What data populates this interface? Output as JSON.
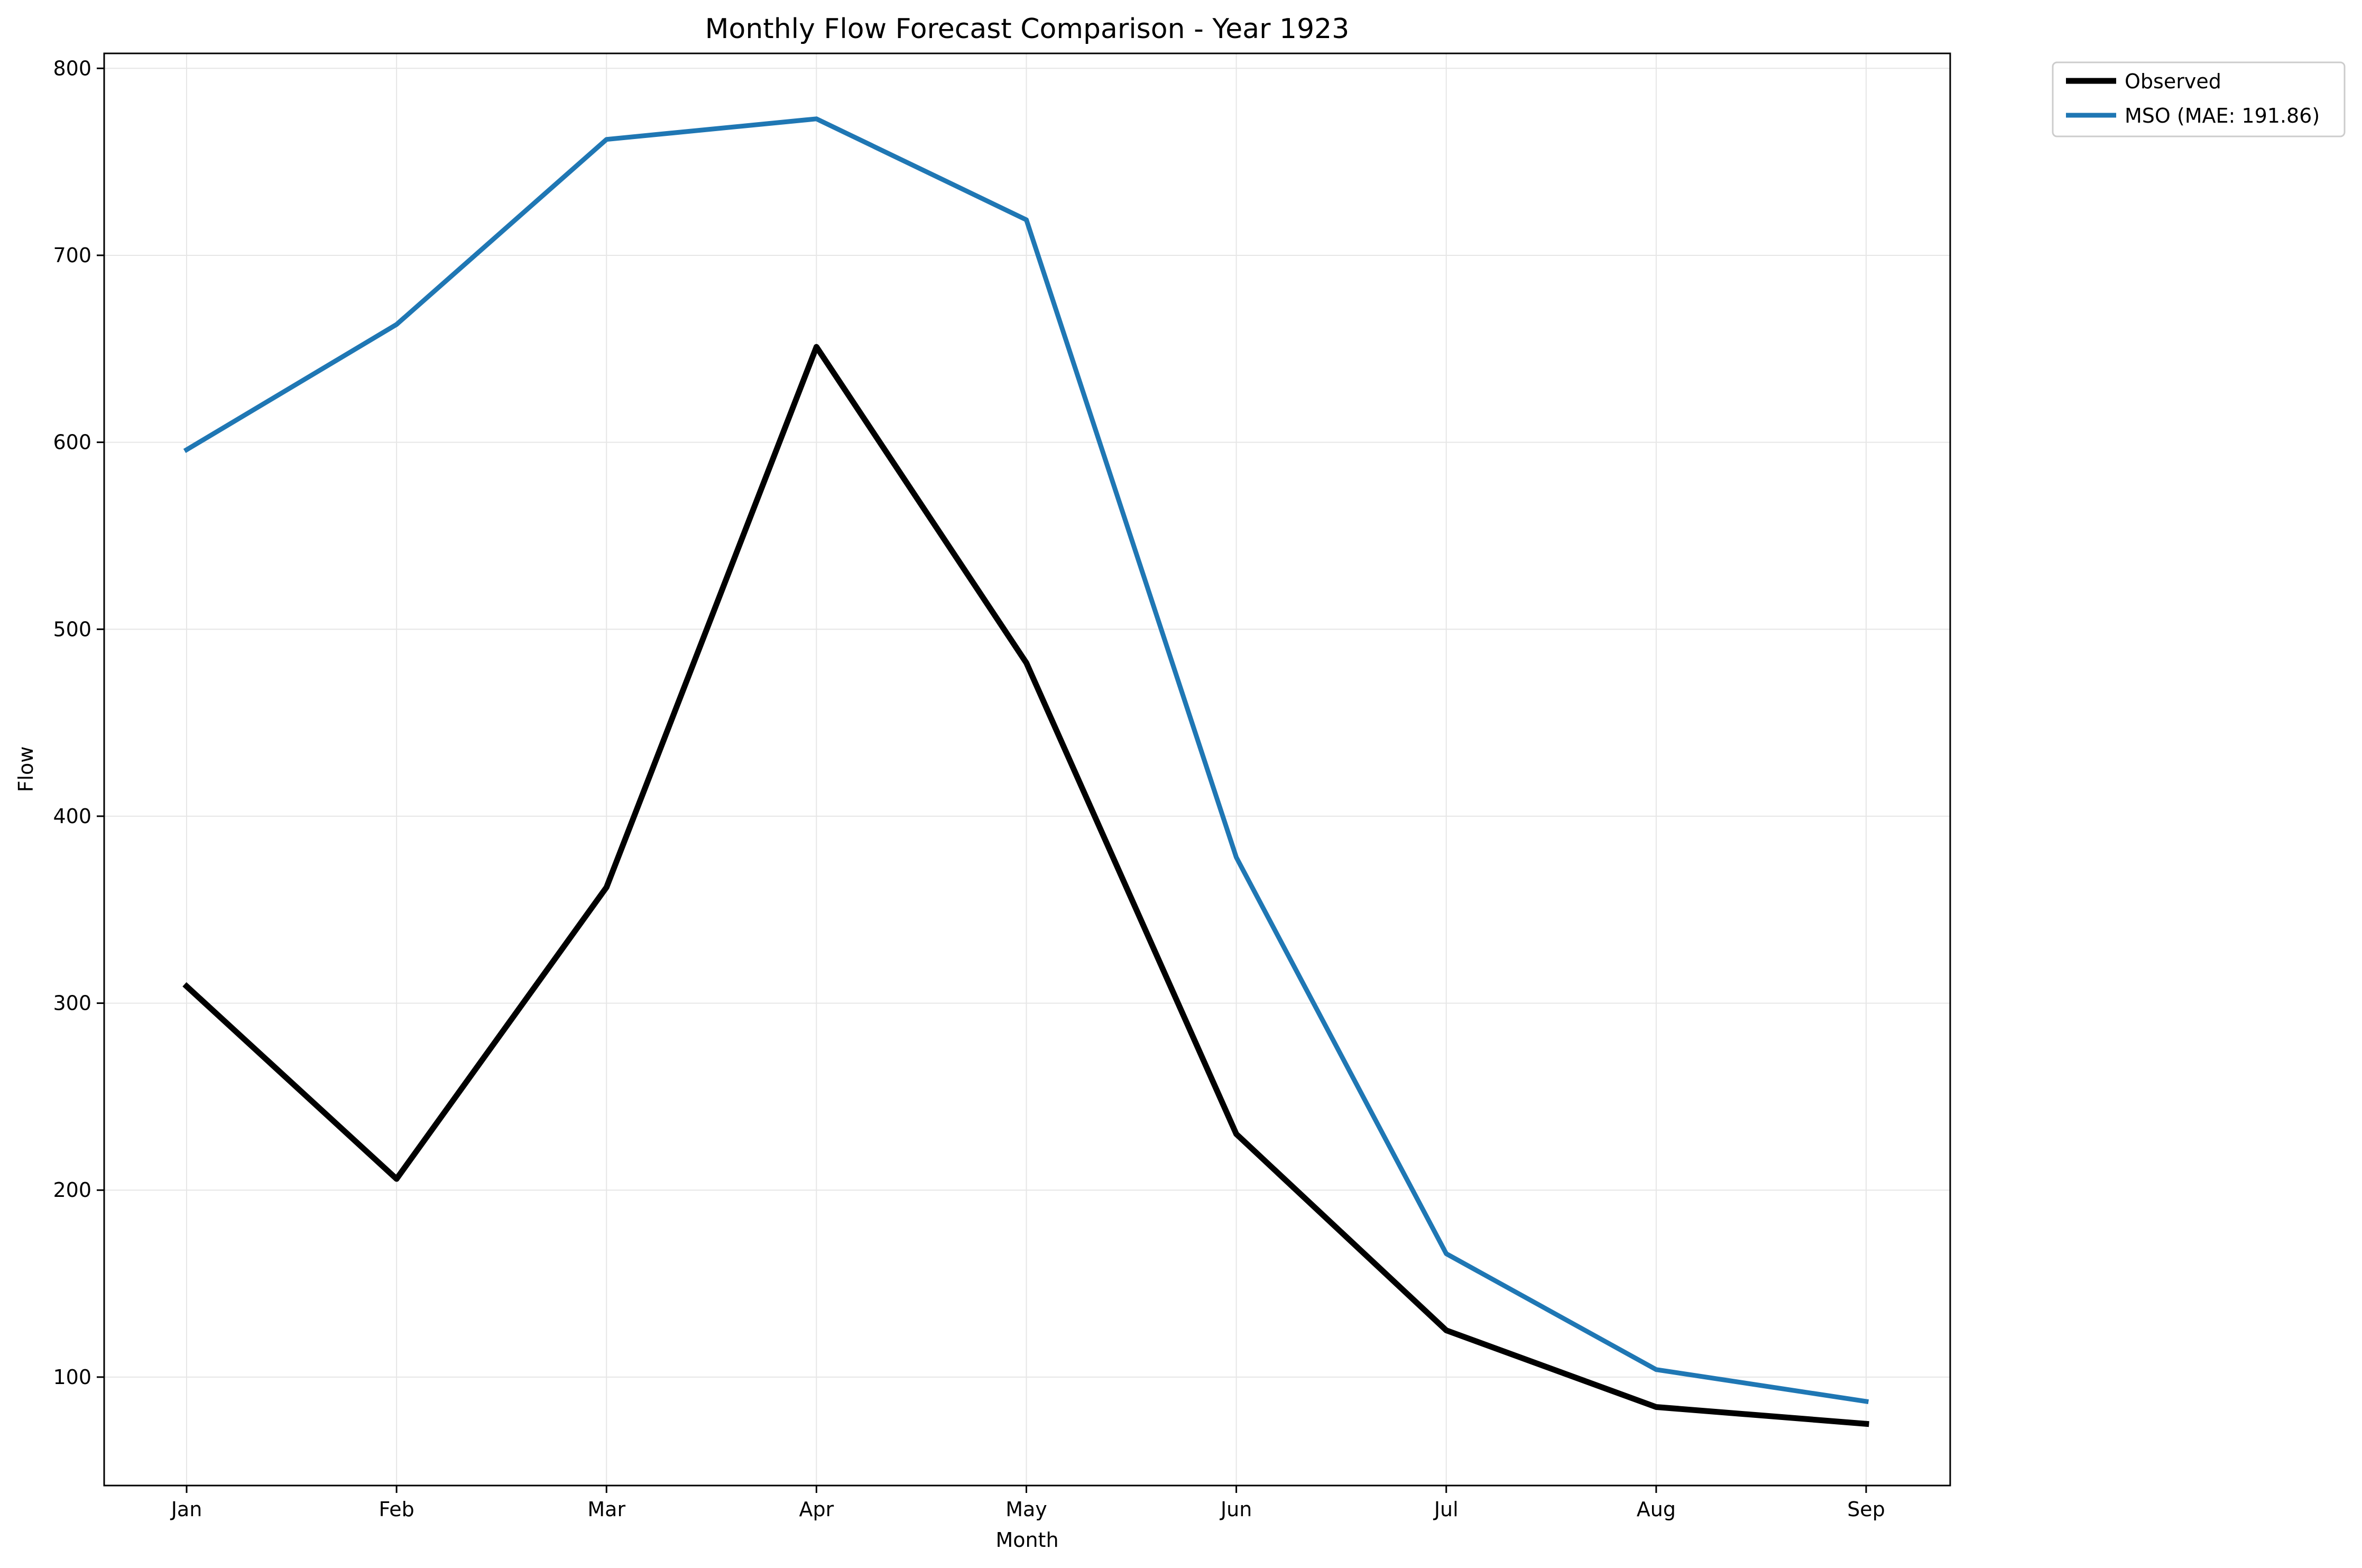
{
  "chart_data": {
    "type": "line",
    "title": "Monthly Flow Forecast Comparison - Year 1923",
    "xlabel": "Month",
    "ylabel": "Flow",
    "categories": [
      "Jan",
      "Feb",
      "Mar",
      "Apr",
      "May",
      "Jun",
      "Jul",
      "Aug",
      "Sep"
    ],
    "ylim": [
      42,
      808
    ],
    "yticks": [
      100,
      200,
      300,
      400,
      500,
      600,
      700,
      800
    ],
    "grid": true,
    "legend_position": "upper right, outside plot",
    "series": [
      {
        "name": "Observed",
        "color": "#000000",
        "values": [
          309,
          206,
          362,
          651,
          482,
          230,
          125,
          84,
          75
        ]
      },
      {
        "name": "MSO (MAE: 191.86)",
        "color": "#1f77b4",
        "values": [
          596,
          663,
          762,
          773,
          719,
          378,
          166,
          104,
          87
        ]
      }
    ]
  }
}
